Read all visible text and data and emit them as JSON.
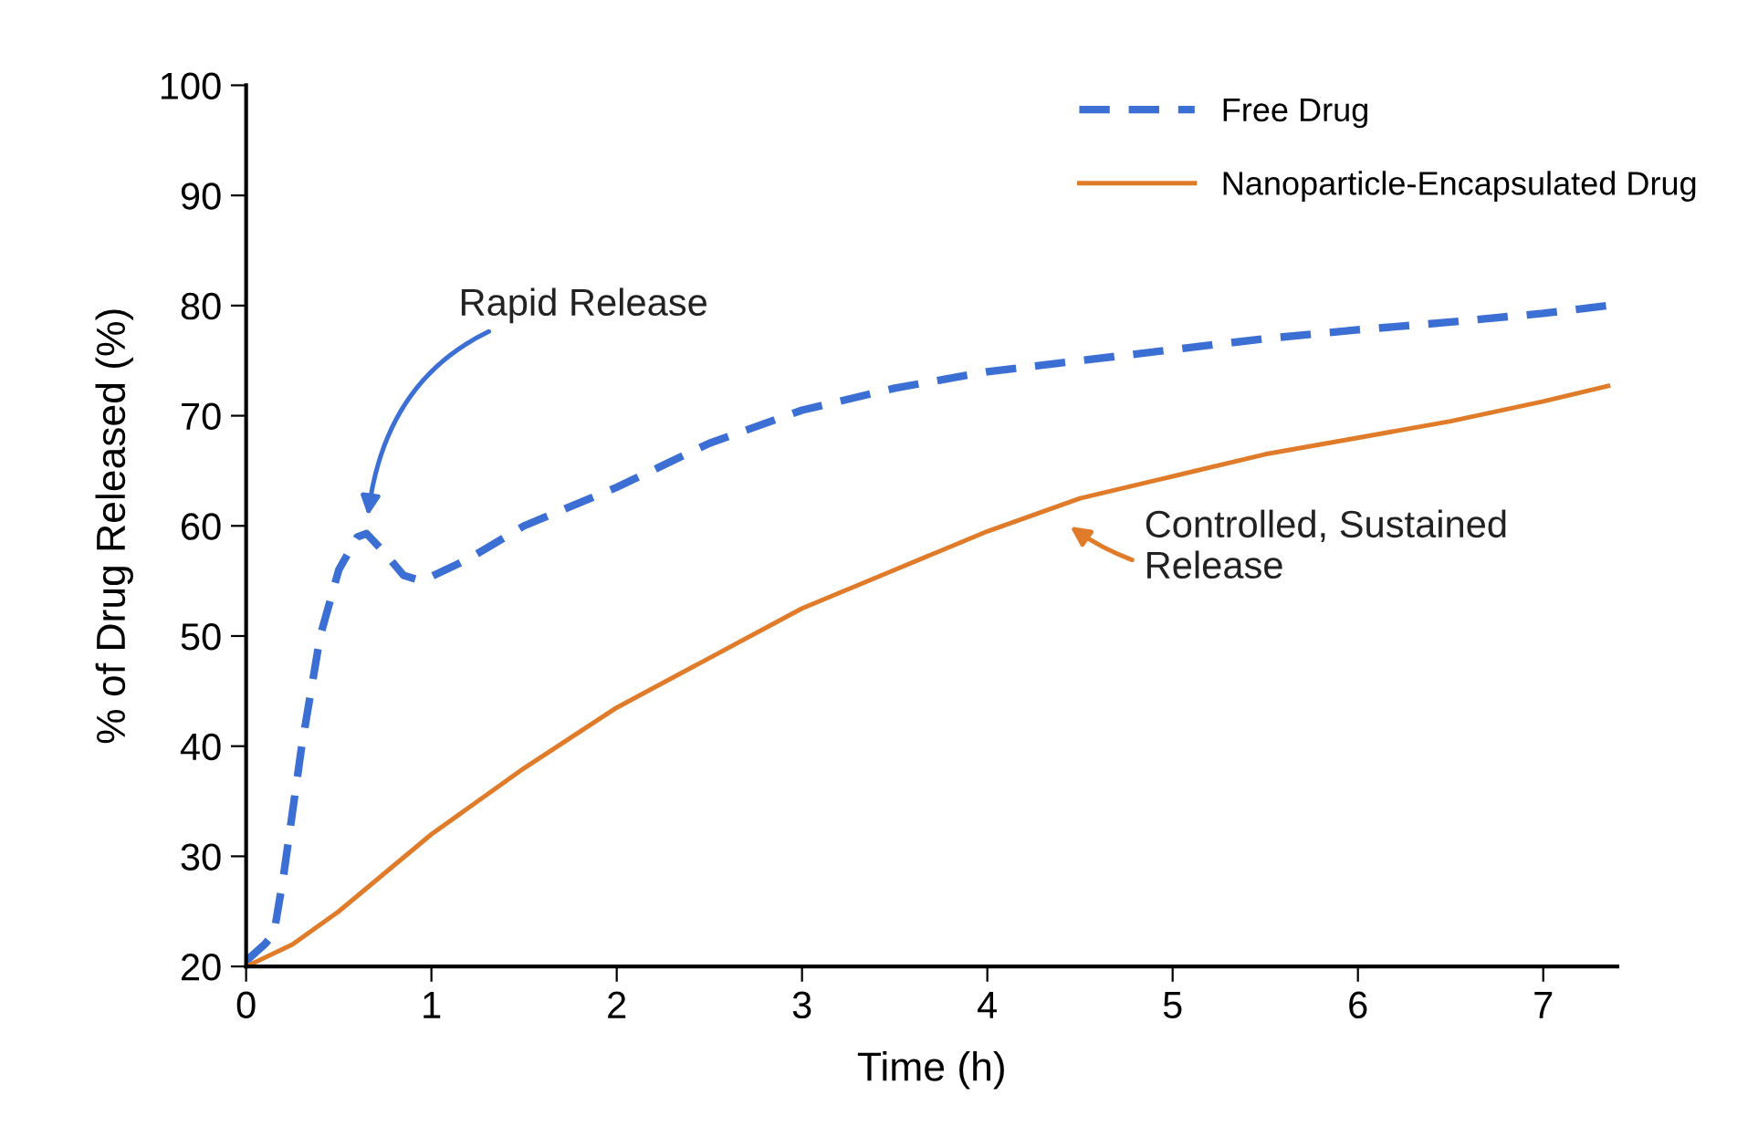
{
  "chart_data": {
    "type": "line",
    "xlabel": "Time (h)",
    "ylabel": "% of Drug Released (%)",
    "xlim": [
      0,
      7.4
    ],
    "ylim": [
      20,
      100
    ],
    "xticks": [
      0,
      1,
      2,
      3,
      4,
      5,
      6,
      7
    ],
    "yticks": [
      20,
      30,
      40,
      50,
      60,
      70,
      80,
      90,
      100
    ],
    "grid": false,
    "legend": "top right",
    "marker": "none",
    "series": [
      {
        "name": "Free Drug",
        "color": "#3b6fd4",
        "line_style": "dashed",
        "x": [
          0,
          0.1,
          0.15,
          0.2,
          0.3,
          0.4,
          0.5,
          0.6,
          0.65,
          0.75,
          0.85,
          0.95,
          1.2,
          1.5,
          2,
          2.5,
          3,
          3.5,
          4,
          4.5,
          5,
          5.5,
          6,
          6.5,
          7,
          7.35
        ],
        "values": [
          20.5,
          22,
          23,
          28,
          40,
          50,
          56,
          59,
          59.3,
          57.5,
          55.5,
          55,
          57,
          60,
          63.5,
          67.5,
          70.5,
          72.5,
          74,
          75,
          76,
          77,
          77.8,
          78.5,
          79.3,
          80
        ]
      },
      {
        "name": "Nanoparticle-Encapsulated Drug",
        "color": "#e07b2a",
        "line_style": "solid",
        "x": [
          0,
          0.25,
          0.5,
          0.75,
          1,
          1.5,
          2,
          2.5,
          3,
          3.5,
          4,
          4.5,
          5,
          5.5,
          6,
          6.5,
          7,
          7.35
        ],
        "values": [
          20,
          22,
          25,
          28.5,
          32,
          38,
          43.5,
          48,
          52.5,
          56,
          59.5,
          62.5,
          64.5,
          66.5,
          68,
          69.5,
          71.3,
          72.7
        ]
      }
    ],
    "annotations": [
      "Rapid Release",
      "Controlled, Sustained\nRelease"
    ]
  }
}
